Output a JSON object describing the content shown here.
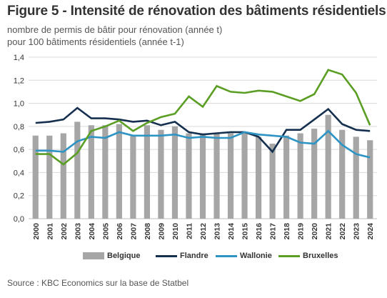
{
  "header": {
    "title": "Figure 5 - Intensité de rénovation des bâtiments résidentiels",
    "subtitle_line1": "nombre de permis de bâtir pour rénovation (année t)",
    "subtitle_line2": "pour 100 bâtiments résidentiels (année t-1)"
  },
  "footer": {
    "source": "Source : KBC Economics sur la base de Statbel"
  },
  "chart_data": {
    "type": "bar+line",
    "categories": [
      "2000",
      "2001",
      "2002",
      "2003",
      "2004",
      "2005",
      "2006",
      "2007",
      "2008",
      "2009",
      "2010",
      "2011",
      "2012",
      "2013",
      "2014",
      "2015",
      "2016",
      "2017",
      "2018",
      "2019",
      "2020",
      "2021",
      "2022",
      "2023",
      "2024"
    ],
    "ylim": [
      0,
      1.4
    ],
    "yticks": [
      "0,0",
      "0,2",
      "0,4",
      "0,6",
      "0,8",
      "1,0",
      "1,2",
      "1,4"
    ],
    "grid": true,
    "legend_position": "bottom",
    "series": [
      {
        "name": "Belgique",
        "kind": "bar",
        "color": "#a6a6a6",
        "values": [
          0.72,
          0.72,
          0.74,
          0.84,
          0.81,
          0.81,
          0.82,
          0.72,
          0.81,
          0.77,
          0.8,
          0.74,
          0.74,
          0.74,
          0.74,
          0.75,
          0.71,
          0.65,
          0.72,
          0.74,
          0.78,
          0.9,
          0.77,
          0.71,
          0.68
        ]
      },
      {
        "name": "Flandre",
        "kind": "line",
        "color": "#15304f",
        "values": [
          0.83,
          0.84,
          0.86,
          0.96,
          0.87,
          0.87,
          0.86,
          0.84,
          0.85,
          0.81,
          0.84,
          0.75,
          0.73,
          0.74,
          0.75,
          0.75,
          0.71,
          0.58,
          0.77,
          0.77,
          0.86,
          0.95,
          0.82,
          0.77,
          0.76
        ]
      },
      {
        "name": "Wallonie",
        "kind": "line",
        "color": "#2e94c4",
        "values": [
          0.59,
          0.59,
          0.58,
          0.67,
          0.71,
          0.7,
          0.75,
          0.72,
          0.72,
          0.72,
          0.73,
          0.7,
          0.71,
          0.7,
          0.7,
          0.75,
          0.73,
          0.72,
          0.71,
          0.66,
          0.65,
          0.76,
          0.64,
          0.56,
          0.53
        ]
      },
      {
        "name": "Bruxelles",
        "kind": "line",
        "color": "#5a9e23",
        "values": [
          0.56,
          0.56,
          0.47,
          0.57,
          0.76,
          0.8,
          0.85,
          0.76,
          0.83,
          0.88,
          0.91,
          1.06,
          0.97,
          1.15,
          1.1,
          1.09,
          1.11,
          1.1,
          1.06,
          1.02,
          1.08,
          1.29,
          1.25,
          1.09,
          0.81
        ]
      }
    ]
  }
}
